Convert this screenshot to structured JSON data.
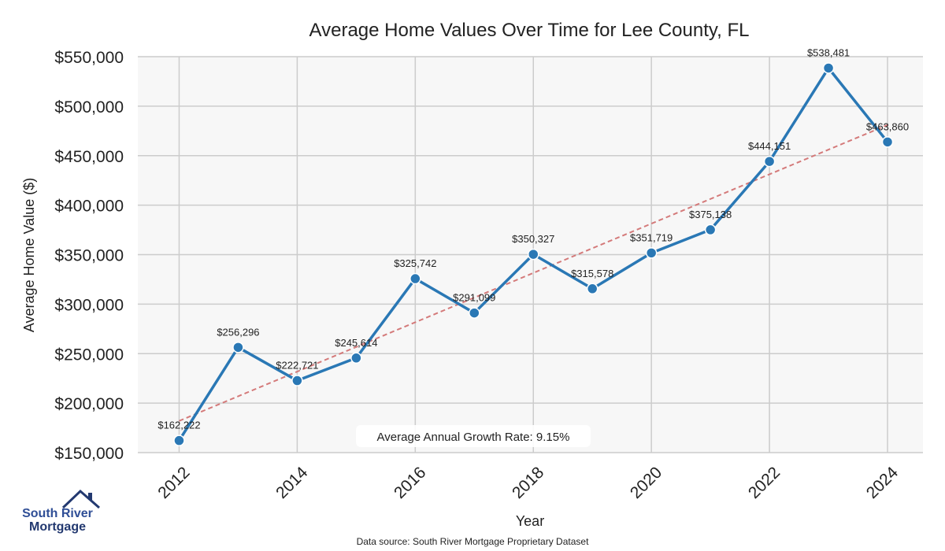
{
  "chart_data": {
    "type": "line",
    "title": "Average Home Values Over Time for Lee County, FL",
    "xlabel": "Year",
    "ylabel": "Average Home Value ($)",
    "x": [
      2012,
      2013,
      2014,
      2015,
      2016,
      2017,
      2018,
      2019,
      2020,
      2021,
      2022,
      2023,
      2024
    ],
    "series": [
      {
        "name": "Average Home Value",
        "color": "#2a78b5",
        "values": [
          162222,
          256296,
          222721,
          245614,
          325742,
          291099,
          350327,
          315578,
          351719,
          375138,
          444151,
          538481,
          463860
        ],
        "labels": [
          "$162,222",
          "$256,296",
          "$222,721",
          "$245,614",
          "$325,742",
          "$291,099",
          "$350,327",
          "$315,578",
          "$351,719",
          "$375,138",
          "$444,151",
          "$538,481",
          "$463,860"
        ]
      }
    ],
    "trendline": {
      "color": "#d47a7a",
      "start": [
        2012,
        182000
      ],
      "end": [
        2024,
        481000
      ]
    },
    "xticks": [
      2012,
      2014,
      2016,
      2018,
      2020,
      2022,
      2024
    ],
    "xtick_labels": [
      "2012",
      "2014",
      "2016",
      "2018",
      "2020",
      "2022",
      "2024"
    ],
    "yticks": [
      150000,
      200000,
      250000,
      300000,
      350000,
      400000,
      450000,
      500000,
      550000
    ],
    "ytick_labels": [
      "$150,000",
      "$200,000",
      "$250,000",
      "$300,000",
      "$350,000",
      "$400,000",
      "$450,000",
      "$500,000",
      "$550,000"
    ],
    "xlim": [
      2011.3,
      2024.6
    ],
    "ylim": [
      150000,
      550000
    ],
    "grid": true,
    "annotation": "Average Annual Growth Rate: 9.15%"
  },
  "logo": {
    "line1": "South River",
    "line2": "Mortgage"
  },
  "source": "Data source: South River Mortgage Proprietary Dataset"
}
